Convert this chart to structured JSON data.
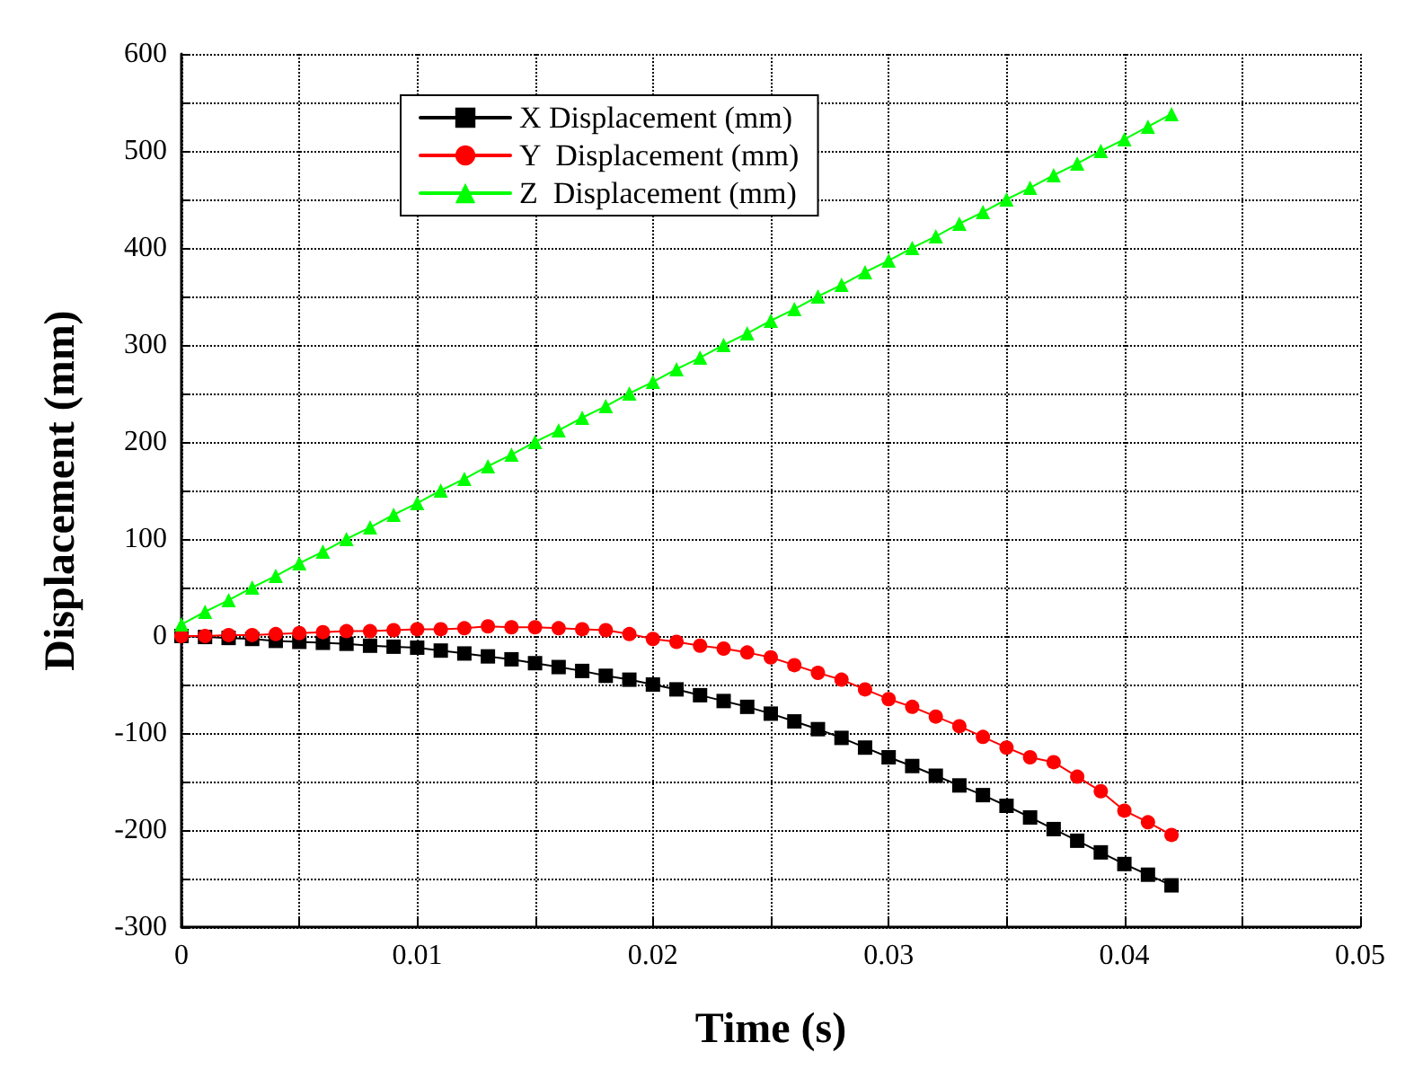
{
  "chart_data": {
    "type": "line",
    "xlabel": "Time (s)",
    "ylabel": "Displacement (mm)",
    "x": [
      0,
      0.001,
      0.002,
      0.003,
      0.004,
      0.005,
      0.006,
      0.007,
      0.008,
      0.009,
      0.01,
      0.011,
      0.012,
      0.013,
      0.014,
      0.015,
      0.016,
      0.017,
      0.018,
      0.019,
      0.02,
      0.021,
      0.022,
      0.023,
      0.024,
      0.025,
      0.026,
      0.027,
      0.028,
      0.029,
      0.03,
      0.031,
      0.032,
      0.033,
      0.034,
      0.035,
      0.036,
      0.037,
      0.038,
      0.039,
      0.04,
      0.041,
      0.042
    ],
    "series": [
      {
        "name": "X Displacement (mm)",
        "color": "#000000",
        "marker": "square",
        "values": [
          0,
          -1,
          -2,
          -3,
          -5,
          -6,
          -7,
          -8,
          -10,
          -11,
          -12,
          -15,
          -18,
          -21,
          -24,
          -28,
          -32,
          -36,
          -41,
          -45,
          -50,
          -55,
          -61,
          -67,
          -73,
          -80,
          -88,
          -96,
          -105,
          -115,
          -125,
          -134,
          -144,
          -154,
          -164,
          -175,
          -187,
          -199,
          -211,
          -223,
          -235,
          -246,
          -257
        ]
      },
      {
        "name": "Y  Displacement (mm)",
        "color": "#ff0000",
        "marker": "circle",
        "values": [
          0,
          0,
          1,
          1,
          2,
          3,
          4,
          5,
          5,
          6,
          7,
          7,
          8,
          10,
          9,
          9,
          8,
          7,
          6,
          2,
          -3,
          -6,
          -10,
          -13,
          -17,
          -22,
          -30,
          -38,
          -45,
          -55,
          -65,
          -73,
          -83,
          -93,
          -104,
          -115,
          -125,
          -130,
          -145,
          -160,
          -180,
          -192,
          -205
        ]
      },
      {
        "name": "Z  Displacement (mm)",
        "color": "#00ff00",
        "marker": "triangle",
        "values": [
          12,
          25,
          37,
          50,
          62,
          75,
          87,
          100,
          112,
          125,
          137,
          150,
          162,
          175,
          187,
          200,
          212,
          225,
          237,
          250,
          262,
          275,
          287,
          300,
          312,
          325,
          337,
          350,
          362,
          375,
          387,
          400,
          412,
          425,
          437,
          450,
          462,
          475,
          487,
          500,
          512,
          525,
          538
        ]
      }
    ],
    "xlim": [
      0,
      0.05
    ],
    "xticks": [
      0,
      {
        "value": 0.005,
        "label": null
      },
      0.01,
      {
        "value": 0.015,
        "label": null
      },
      0.02,
      {
        "value": 0.025,
        "label": null
      },
      0.03,
      {
        "value": 0.035,
        "label": null
      },
      0.04,
      {
        "value": 0.045,
        "label": null
      },
      0.05
    ],
    "ylim": [
      -300,
      600
    ],
    "yticks": [
      -300,
      {
        "value": -250,
        "label": null
      },
      -200,
      {
        "value": -150,
        "label": null
      },
      -100,
      {
        "value": -50,
        "label": null
      },
      0,
      {
        "value": 50,
        "label": null
      },
      100,
      {
        "value": 150,
        "label": null
      },
      200,
      {
        "value": 250,
        "label": null
      },
      300,
      {
        "value": 350,
        "label": null
      },
      400,
      {
        "value": 450,
        "label": null
      },
      500,
      {
        "value": 550,
        "label": null
      },
      600
    ],
    "grid": true,
    "legend": "top left",
    "line_style": "solid"
  }
}
